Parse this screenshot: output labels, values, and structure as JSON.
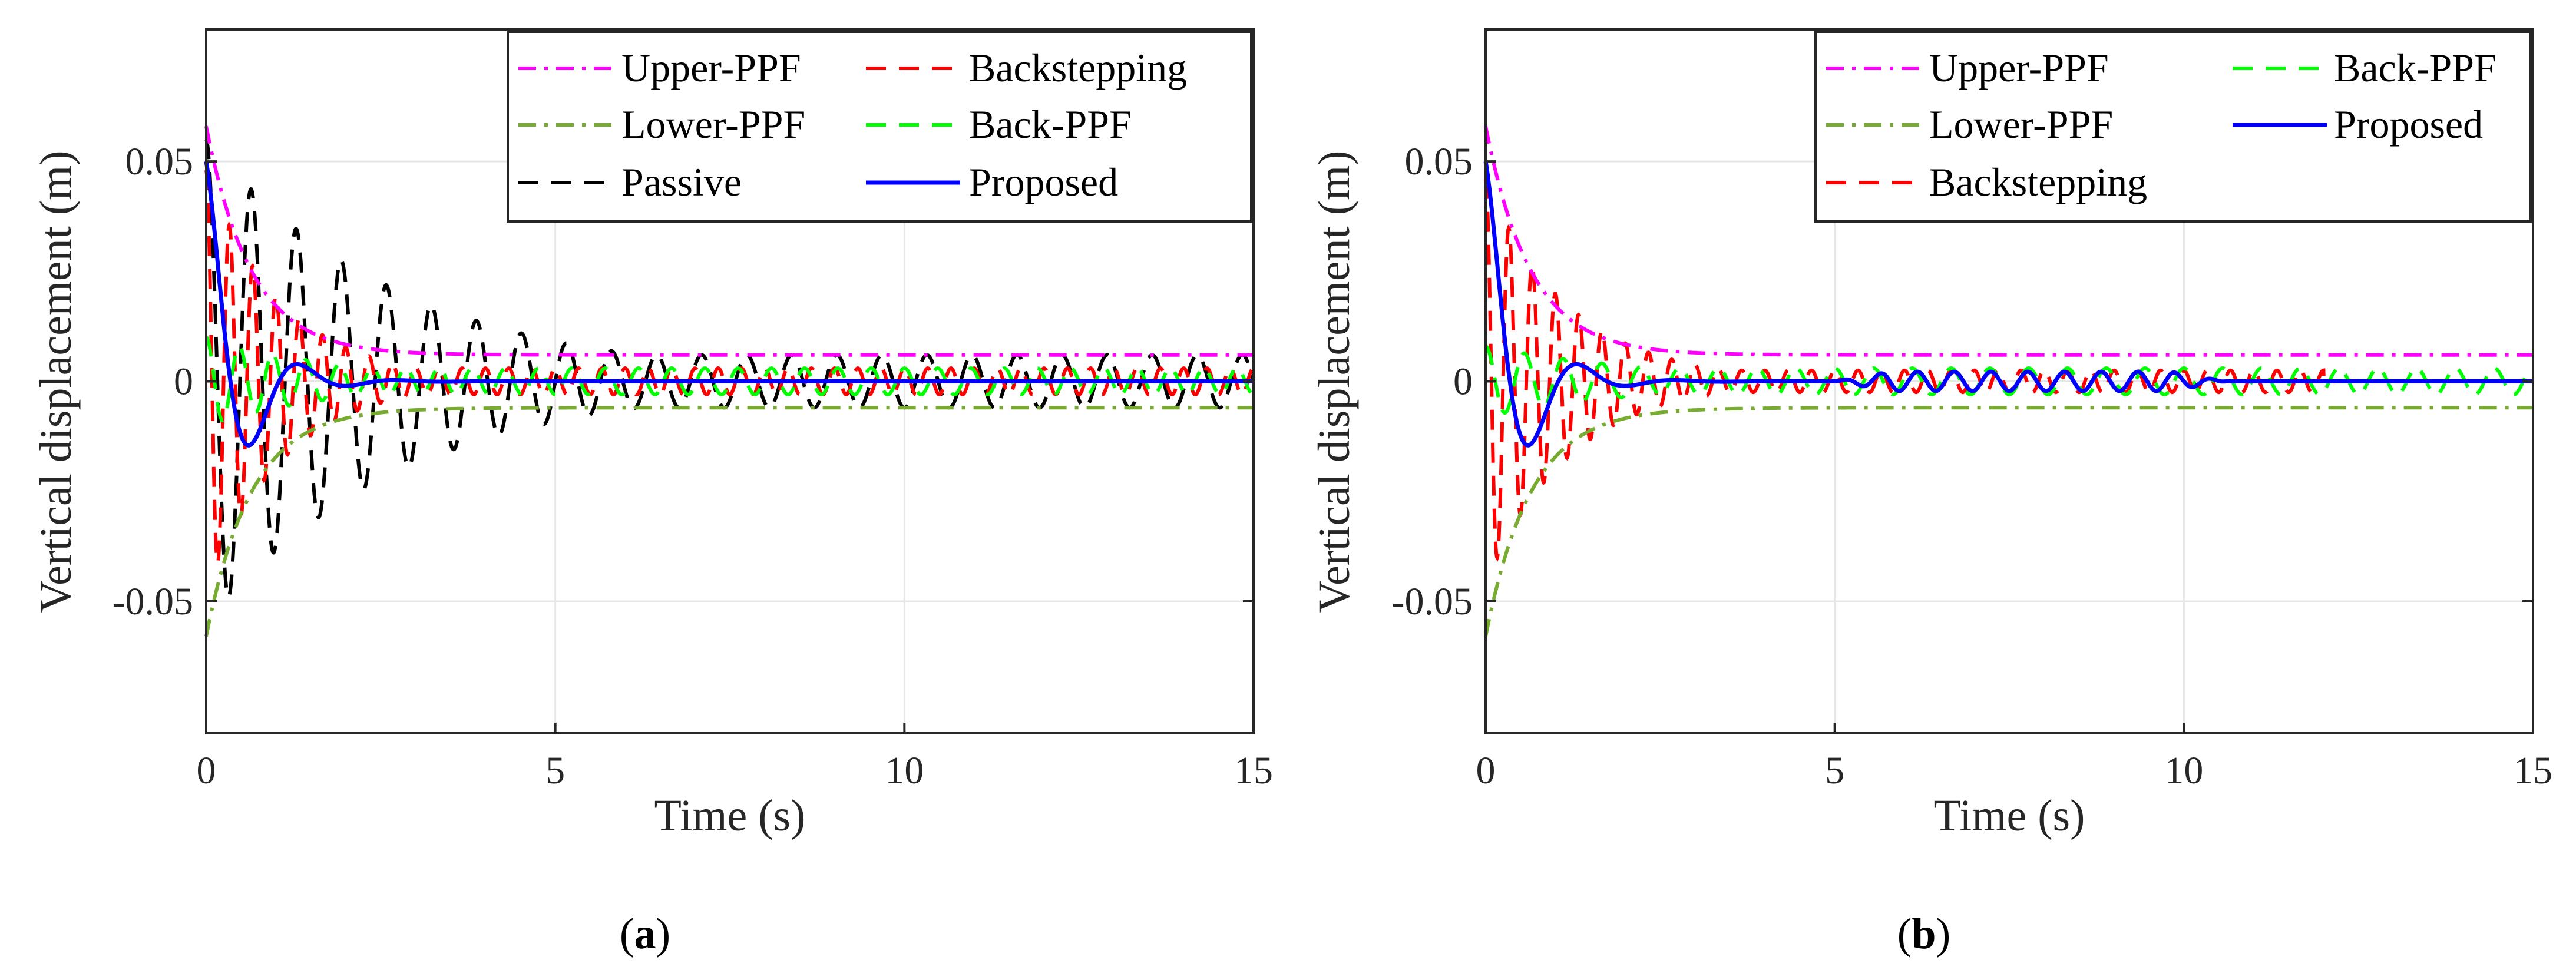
{
  "chart_data": [
    {
      "type": "line",
      "panel_label": "a",
      "xlabel": "Time (s)",
      "ylabel": "Vertical displacement (m)",
      "xlim": [
        0,
        15
      ],
      "ylim": [
        -0.08,
        0.08
      ],
      "xticks": [
        0,
        5,
        10,
        15
      ],
      "xtick_labels": [
        "0",
        "5",
        "10",
        "15"
      ],
      "yticks": [
        -0.05,
        0,
        0.05
      ],
      "ytick_labels": [
        "-0.05",
        "0",
        "0.05"
      ],
      "grid": true,
      "legend_position": "top-right",
      "legend_columns": 2,
      "series": [
        {
          "name": "Upper-PPF",
          "color": "#ff00ff",
          "style": "dashdot",
          "model": "envelope",
          "y0": 0.058,
          "yinf": 0.006,
          "tau": 0.65
        },
        {
          "name": "Backstepping",
          "color": "#ff0000",
          "style": "dashed",
          "model": "oscillation",
          "amp0": 0.048,
          "tau": 1.1,
          "freq": 3.0,
          "floor": 0.003,
          "t_end": 15
        },
        {
          "name": "Lower-PPF",
          "color": "#77ac30",
          "style": "dashdot",
          "model": "envelope",
          "y0": -0.058,
          "yinf": -0.006,
          "tau": 0.65
        },
        {
          "name": "Back-PPF",
          "color": "#00ff00",
          "style": "dashed",
          "model": "oscillation",
          "amp0": 0.01,
          "tau": 2.0,
          "freq": 2.1,
          "floor": 0.003,
          "t_end": 15
        },
        {
          "name": "Passive",
          "color": "#000000",
          "style": "dashed",
          "model": "oscillation",
          "amp0": 0.055,
          "tau": 2.8,
          "freq": 1.55,
          "floor": 0.006,
          "t_end": 15
        },
        {
          "name": "Proposed",
          "color": "#0000ff",
          "style": "solid",
          "model": "proposed",
          "y0": 0.05,
          "t_end": 15
        }
      ]
    },
    {
      "type": "line",
      "panel_label": "b",
      "xlabel": "Time (s)",
      "ylabel": "Vertical displacement (m)",
      "xlim": [
        0,
        15
      ],
      "ylim": [
        -0.08,
        0.08
      ],
      "xticks": [
        0,
        5,
        10,
        15
      ],
      "xtick_labels": [
        "0",
        "5",
        "10",
        "15"
      ],
      "yticks": [
        -0.05,
        0,
        0.05
      ],
      "ytick_labels": [
        "-0.05",
        "0",
        "0.05"
      ],
      "grid": true,
      "legend_position": "top-right",
      "legend_columns": 2,
      "series": [
        {
          "name": "Upper-PPF",
          "color": "#ff00ff",
          "style": "dashdot",
          "model": "envelope",
          "y0": 0.058,
          "yinf": 0.006,
          "tau": 0.65
        },
        {
          "name": "Back-PPF",
          "color": "#00ff00",
          "style": "dashed",
          "model": "oscillation",
          "amp0": 0.008,
          "tau": 2.5,
          "freq": 1.8,
          "floor": 0.003,
          "t_end": 15
        },
        {
          "name": "Lower-PPF",
          "color": "#77ac30",
          "style": "dashdot",
          "model": "envelope",
          "y0": -0.058,
          "yinf": -0.006,
          "tau": 0.65
        },
        {
          "name": "Proposed",
          "color": "#0000ff",
          "style": "solid",
          "model": "proposed_b",
          "y0": 0.05,
          "t_end": 15
        },
        {
          "name": "Backstepping",
          "color": "#ff0000",
          "style": "dashed",
          "model": "oscillation",
          "amp0": 0.046,
          "tau": 1.2,
          "freq": 3.0,
          "floor": 0.0025,
          "t_end": 12
        }
      ]
    }
  ]
}
